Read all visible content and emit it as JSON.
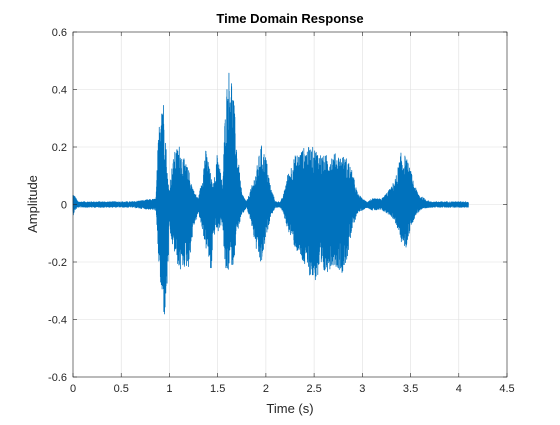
{
  "chart_data": {
    "type": "line",
    "title": "Time Domain Response",
    "xlabel": "Time (s)",
    "ylabel": "Amplitude",
    "xlim": [
      0,
      4.5
    ],
    "ylim": [
      -0.6,
      0.6
    ],
    "xticks": [
      0,
      0.5,
      1,
      1.5,
      2,
      2.5,
      3,
      3.5,
      4,
      4.5
    ],
    "yticks": [
      -0.6,
      -0.4,
      -0.2,
      0,
      0.2,
      0.4,
      0.6
    ],
    "xtick_labels": [
      "0",
      "0.5",
      "1",
      "1.5",
      "2",
      "2.5",
      "3",
      "3.5",
      "4",
      "4.5"
    ],
    "ytick_labels": [
      "-0.6",
      "-0.4",
      "-0.2",
      "0",
      "0.2",
      "0.4",
      "0.6"
    ],
    "grid": true,
    "series": [
      {
        "color": "#0072bd",
        "envelope": {
          "t": [
            0.0,
            0.02,
            0.05,
            0.3,
            0.6,
            0.86,
            0.88,
            0.92,
            0.95,
            0.98,
            1.0,
            1.02,
            1.05,
            1.08,
            1.1,
            1.15,
            1.2,
            1.25,
            1.3,
            1.35,
            1.37,
            1.4,
            1.43,
            1.45,
            1.48,
            1.5,
            1.55,
            1.58,
            1.6,
            1.63,
            1.66,
            1.7,
            1.75,
            1.8,
            1.85,
            1.9,
            1.95,
            2.0,
            2.05,
            2.1,
            2.15,
            2.18,
            2.22,
            2.3,
            2.4,
            2.5,
            2.6,
            2.7,
            2.8,
            2.85,
            2.9,
            2.95,
            3.0,
            3.05,
            3.1,
            3.2,
            3.3,
            3.35,
            3.4,
            3.45,
            3.5,
            3.55,
            3.6,
            3.7,
            3.8,
            3.9,
            4.0,
            4.1
          ],
          "upper": [
            0.04,
            0.03,
            0.01,
            0.01,
            0.01,
            0.02,
            0.2,
            0.44,
            0.32,
            0.1,
            0.05,
            0.12,
            0.18,
            0.2,
            0.21,
            0.16,
            0.12,
            0.05,
            0.02,
            0.12,
            0.2,
            0.16,
            0.1,
            0.06,
            0.12,
            0.2,
            0.06,
            0.35,
            0.44,
            0.5,
            0.4,
            0.2,
            0.04,
            0.01,
            0.06,
            0.12,
            0.21,
            0.17,
            0.06,
            0.01,
            0.01,
            0.03,
            0.1,
            0.17,
            0.2,
            0.2,
            0.17,
            0.18,
            0.17,
            0.16,
            0.11,
            0.04,
            0.02,
            0.01,
            0.02,
            0.02,
            0.06,
            0.1,
            0.18,
            0.17,
            0.12,
            0.06,
            0.03,
            0.01,
            0.01,
            0.01,
            0.01,
            0.01
          ],
          "lower": [
            -0.04,
            -0.02,
            -0.01,
            -0.01,
            -0.01,
            -0.02,
            -0.16,
            -0.35,
            -0.4,
            -0.28,
            -0.1,
            -0.13,
            -0.17,
            -0.2,
            -0.24,
            -0.22,
            -0.22,
            -0.08,
            -0.03,
            -0.1,
            -0.15,
            -0.17,
            -0.26,
            -0.14,
            -0.08,
            -0.1,
            -0.06,
            -0.25,
            -0.25,
            -0.2,
            -0.22,
            -0.1,
            -0.04,
            -0.01,
            -0.07,
            -0.16,
            -0.22,
            -0.12,
            -0.04,
            -0.01,
            -0.01,
            -0.03,
            -0.08,
            -0.15,
            -0.22,
            -0.27,
            -0.25,
            -0.21,
            -0.24,
            -0.18,
            -0.08,
            -0.03,
            -0.02,
            -0.01,
            -0.02,
            -0.02,
            -0.04,
            -0.07,
            -0.13,
            -0.16,
            -0.08,
            -0.04,
            -0.02,
            -0.01,
            -0.01,
            -0.01,
            -0.01,
            -0.01
          ]
        }
      }
    ]
  }
}
